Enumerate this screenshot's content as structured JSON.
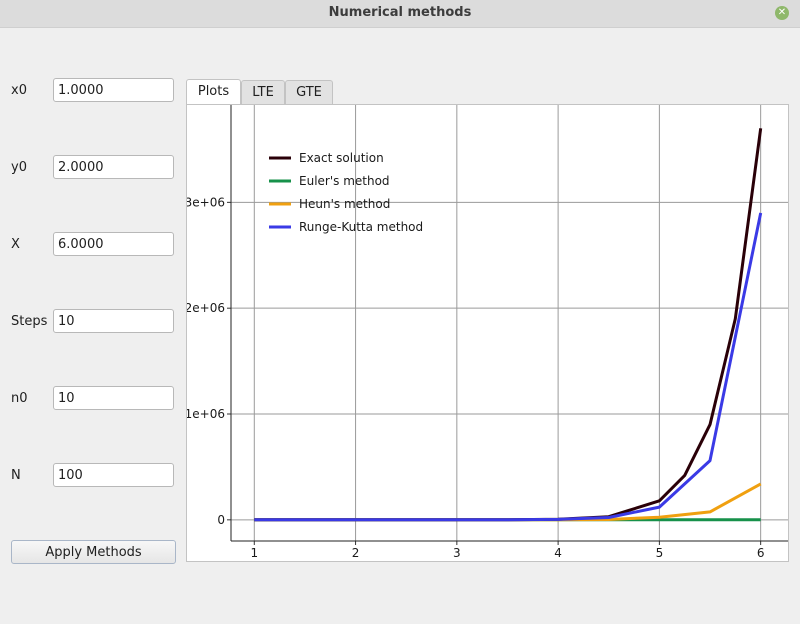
{
  "window": {
    "title": "Numerical methods"
  },
  "form": {
    "fields": [
      {
        "label": "x0",
        "value": "1.0000"
      },
      {
        "label": "y0",
        "value": "2.0000"
      },
      {
        "label": "X",
        "value": "6.0000"
      },
      {
        "label": "Steps",
        "value": "10"
      },
      {
        "label": "n0",
        "value": "10"
      },
      {
        "label": "N",
        "value": "100"
      }
    ],
    "apply_label": "Apply Methods"
  },
  "tabs": [
    {
      "label": "Plots",
      "active": true
    },
    {
      "label": "LTE",
      "active": false
    },
    {
      "label": "GTE",
      "active": false
    }
  ],
  "chart_data": {
    "type": "line",
    "x_ticks": [
      "1",
      "2",
      "3",
      "4",
      "5",
      "6"
    ],
    "y_ticks": [
      "0",
      "1e+06",
      "2e+06",
      "3e+06"
    ],
    "xlim": [
      0.77,
      6.27
    ],
    "ylim": [
      -200000,
      3920000
    ],
    "grid": true,
    "legend_position": "top-left",
    "series": [
      {
        "name": "Exact solution",
        "color": "#2a0008",
        "x": [
          1,
          1.5,
          2,
          2.5,
          3,
          3.5,
          4,
          4.5,
          5,
          5.25,
          5.5,
          5.75,
          6
        ],
        "y": [
          0,
          0,
          0,
          0,
          0,
          0,
          5000,
          30000,
          180000,
          420000,
          900000,
          1900000,
          3700000
        ]
      },
      {
        "name": "Euler's method",
        "color": "#17914a",
        "x": [
          1,
          1.5,
          2,
          2.5,
          3,
          3.5,
          4,
          4.5,
          5,
          5.5,
          6
        ],
        "y": [
          0,
          0,
          0,
          0,
          0,
          0,
          0,
          0,
          0,
          0,
          0
        ]
      },
      {
        "name": "Heun's method",
        "color": "#f0a010",
        "x": [
          1,
          1.5,
          2,
          2.5,
          3,
          3.5,
          4,
          4.5,
          5,
          5.5,
          6
        ],
        "y": [
          0,
          0,
          0,
          0,
          0,
          0,
          0,
          3000,
          25000,
          75000,
          340000
        ]
      },
      {
        "name": "Runge-Kutta method",
        "color": "#3a3ae6",
        "x": [
          1,
          1.5,
          2,
          2.5,
          3,
          3.5,
          4,
          4.5,
          5,
          5.5,
          6
        ],
        "y": [
          0,
          0,
          0,
          0,
          0,
          0,
          4000,
          22000,
          120000,
          560000,
          2900000
        ]
      }
    ]
  }
}
